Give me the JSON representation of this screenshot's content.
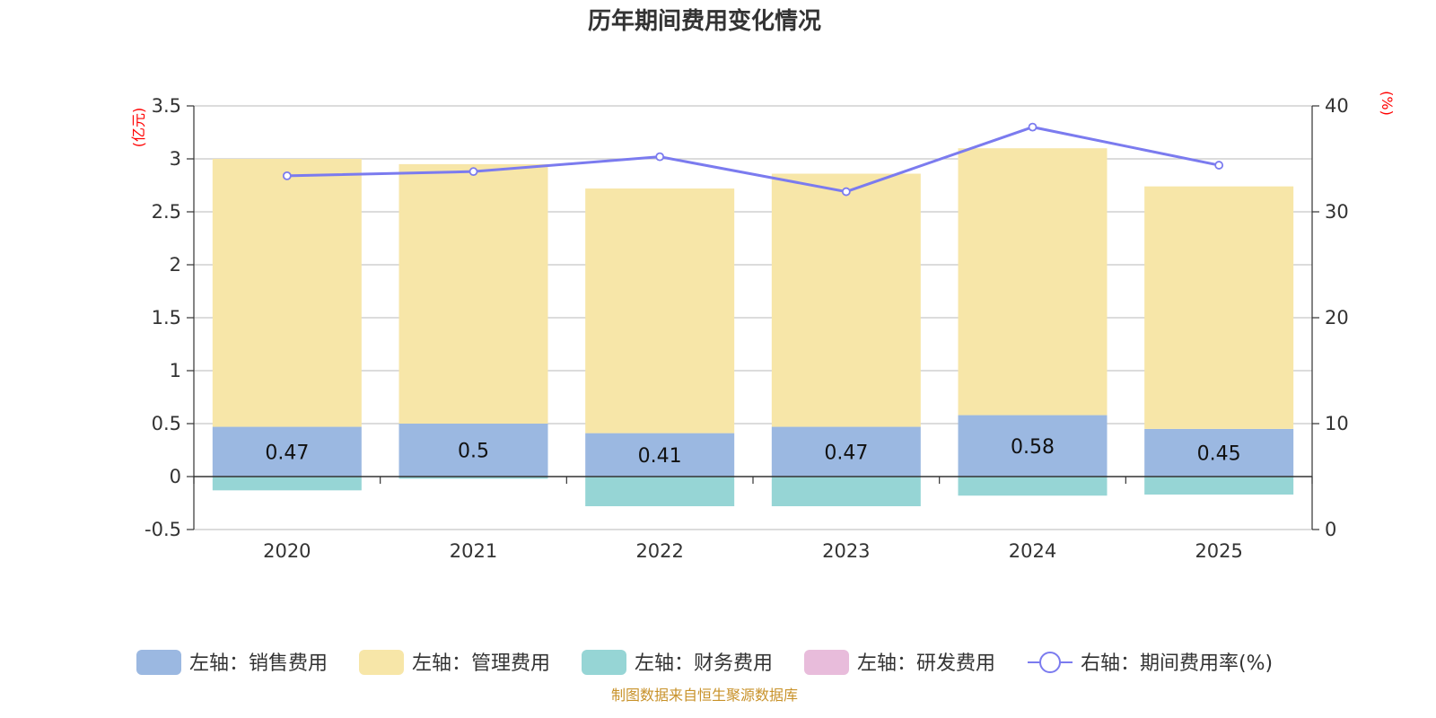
{
  "chart_data": {
    "type": "bar",
    "title": "历年期间费用变化情况",
    "categories": [
      "2020",
      "2021",
      "2022",
      "2023",
      "2024",
      "2025"
    ],
    "left_axis": {
      "unit": "(亿元)",
      "range": [
        -0.5,
        3.5
      ],
      "ticks": [
        "3.5",
        "3",
        "2.5",
        "2",
        "1.5",
        "1",
        "0.5",
        "0",
        "-0.5"
      ]
    },
    "right_axis": {
      "unit": "(%)",
      "range": [
        0,
        40
      ],
      "ticks": [
        "40",
        "30",
        "20",
        "10",
        "0"
      ]
    },
    "series": [
      {
        "name": "左轴：销售费用",
        "axis": "left",
        "type": "bar",
        "color": "#9bb8e1",
        "values": [
          0.47,
          0.5,
          0.41,
          0.47,
          0.58,
          0.45
        ],
        "labels": [
          "0.47",
          "0.5",
          "0.41",
          "0.47",
          "0.58",
          "0.45"
        ]
      },
      {
        "name": "左轴：管理费用",
        "axis": "left",
        "type": "bar",
        "color": "#f7e6a8",
        "values": [
          2.53,
          2.45,
          2.31,
          2.39,
          2.52,
          2.29
        ]
      },
      {
        "name": "左轴：财务费用",
        "axis": "left",
        "type": "bar",
        "color": "#96d5d5",
        "values": [
          -0.13,
          -0.02,
          -0.28,
          -0.28,
          -0.18,
          -0.17
        ]
      },
      {
        "name": "左轴：研发费用",
        "axis": "left",
        "type": "bar",
        "color": "#e8bcdb",
        "values": [
          0,
          0,
          0,
          0,
          0,
          0
        ]
      },
      {
        "name": "右轴：期间费用率(%)",
        "axis": "right",
        "type": "line",
        "color": "#7b7bef",
        "values": [
          33.4,
          33.8,
          35.2,
          31.9,
          38.0,
          34.4
        ]
      }
    ],
    "grid": true,
    "legend_position": "bottom"
  },
  "footer": {
    "source": "制图数据来自恒生聚源数据库"
  }
}
